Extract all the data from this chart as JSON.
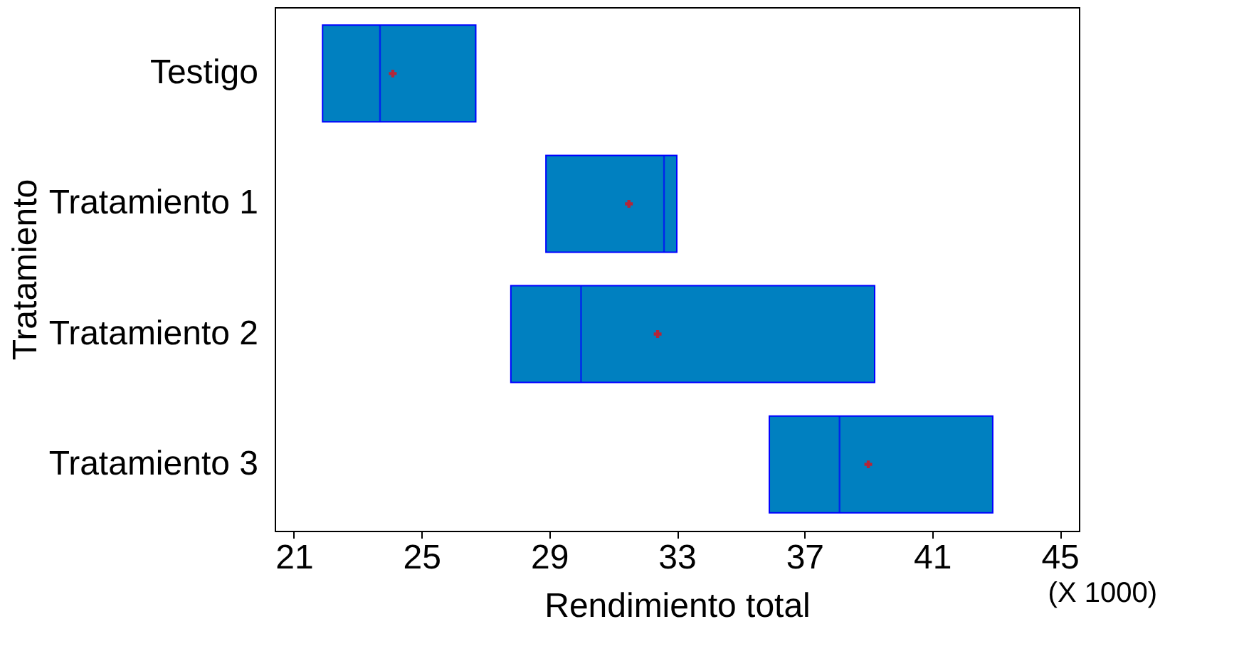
{
  "chart_data": {
    "type": "box",
    "orientation": "horizontal",
    "xlabel": "Rendimiento total",
    "ylabel": "Tratamiento",
    "categories": [
      "Testigo",
      "Tratamiento 1",
      "Tratamiento 2",
      "Tratamiento 3"
    ],
    "color": "#0080c0",
    "boxes": [
      {
        "low": 21.9,
        "q1": 21.9,
        "median": 23.7,
        "q3": 26.7,
        "high": 26.7,
        "mean": 24.1
      },
      {
        "low": 28.9,
        "q1": 28.9,
        "median": 32.6,
        "q3": 33.0,
        "high": 33.0,
        "mean": 31.5
      },
      {
        "low": 27.8,
        "q1": 27.8,
        "median": 30.0,
        "q3": 39.2,
        "high": 39.2,
        "mean": 32.4
      },
      {
        "low": 35.9,
        "q1": 35.9,
        "median": 38.1,
        "q3": 42.9,
        "high": 42.9,
        "mean": 39.0
      }
    ],
    "xlim": [
      20.4,
      45.6
    ],
    "xticks": [
      21,
      25,
      29,
      33,
      37,
      41,
      45
    ],
    "annotations": [
      "(X 1000)"
    ],
    "grid": false,
    "marker": "cross"
  }
}
